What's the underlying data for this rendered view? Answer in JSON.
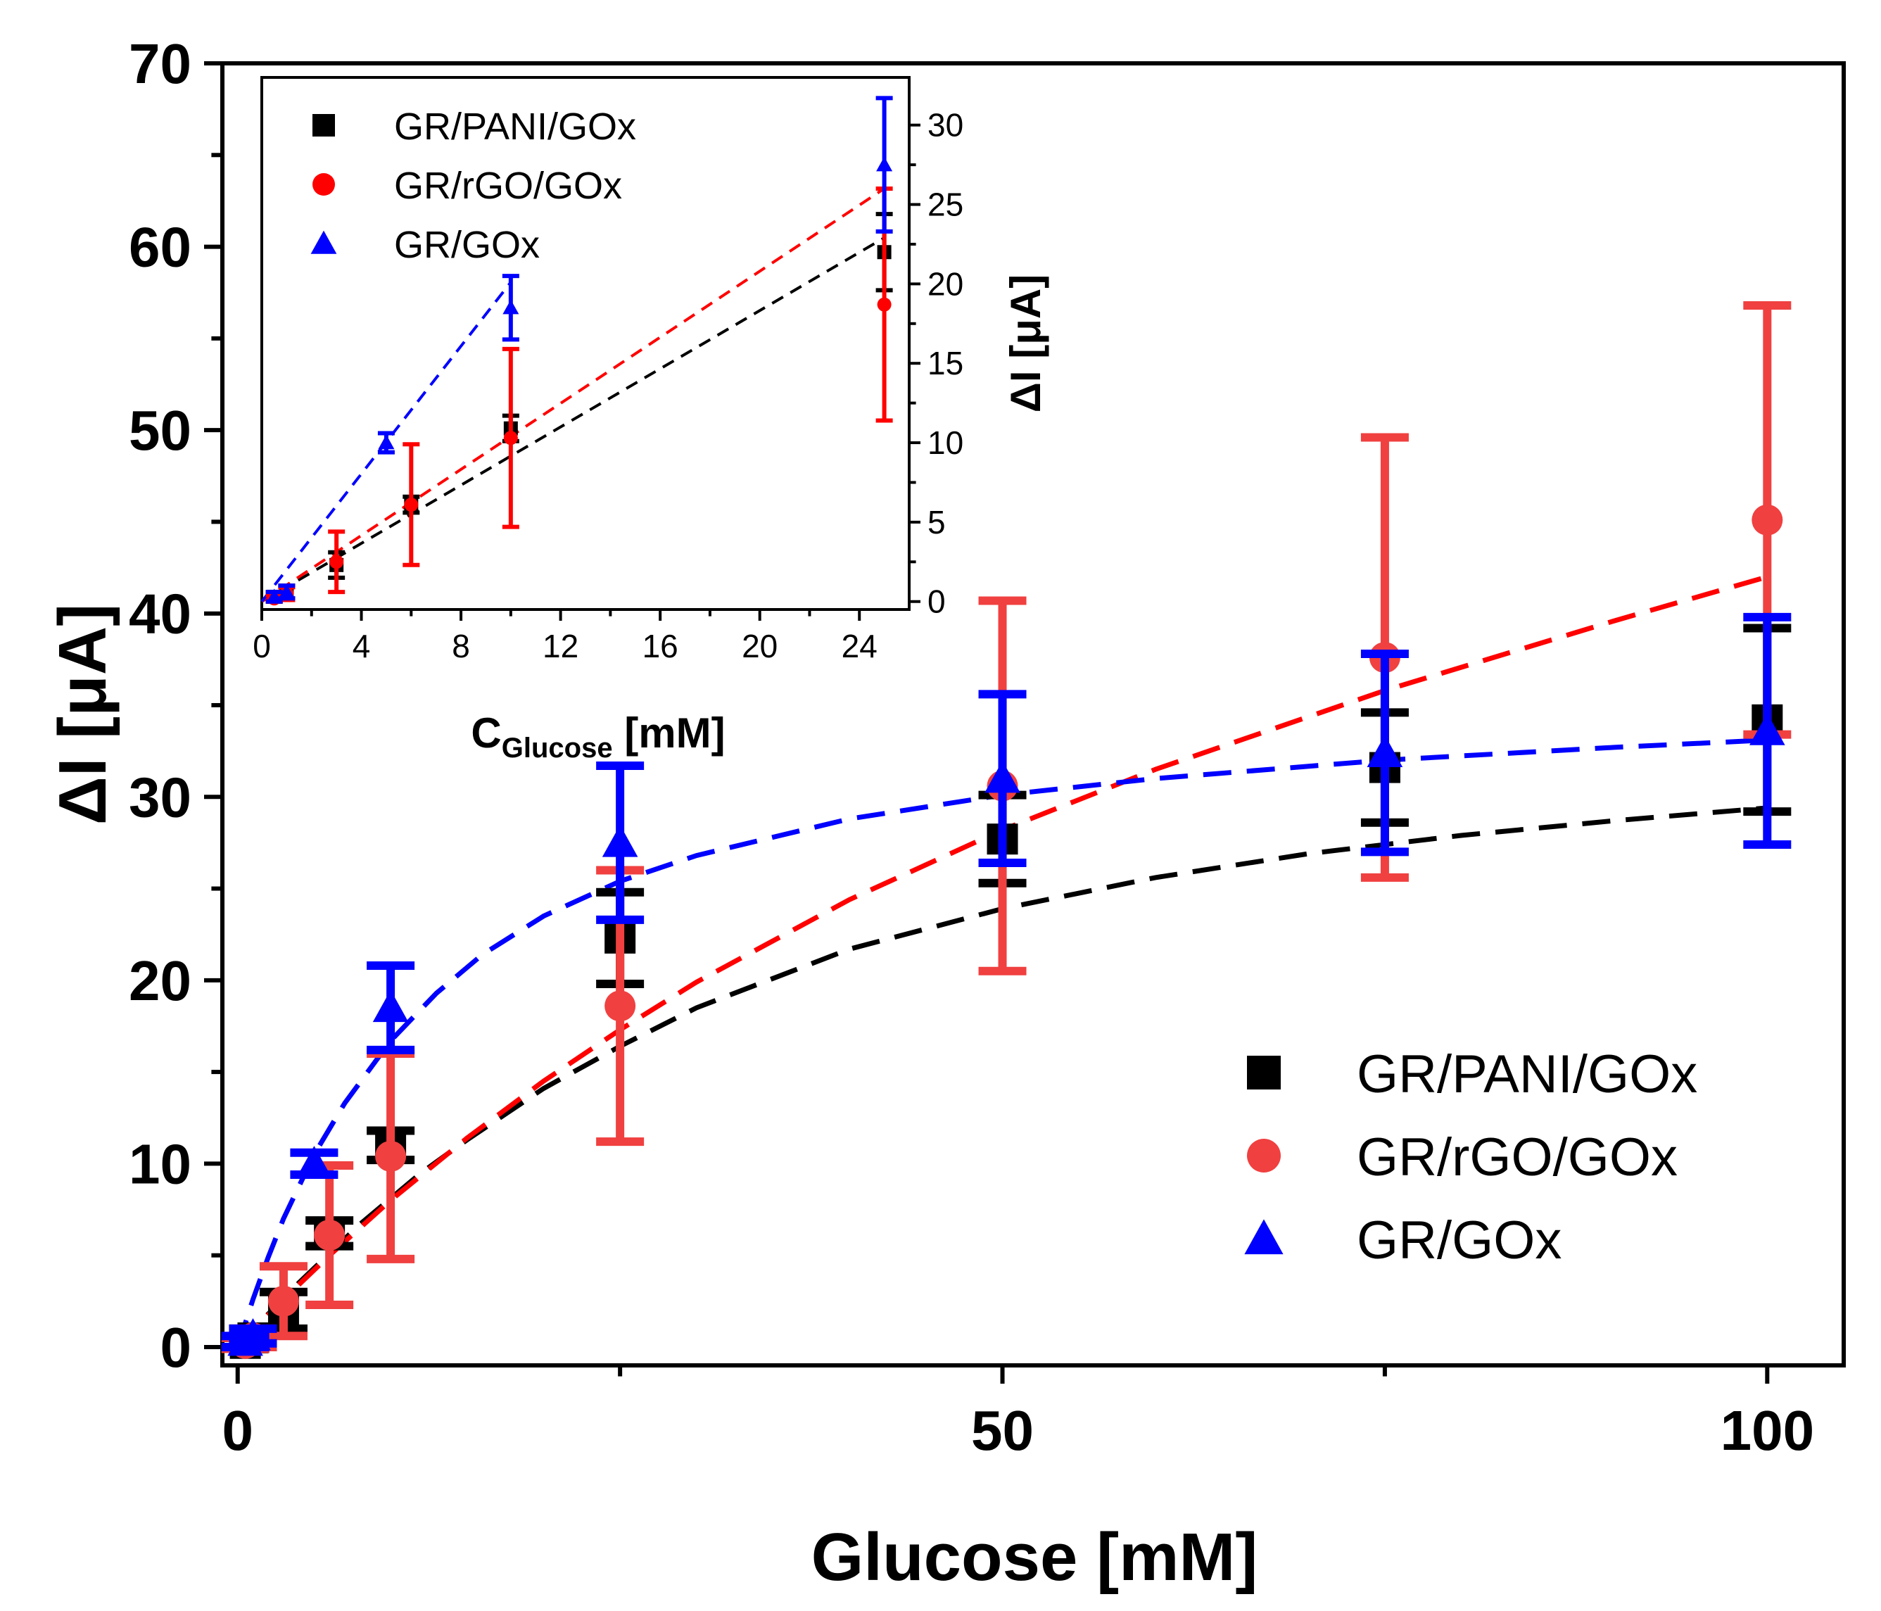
{
  "chart_data": [
    {
      "id": "main",
      "type": "scatter",
      "xlabel": "Glucose [mM]",
      "ylabel": "ΔI [μA]",
      "xlim": [
        -1,
        105
      ],
      "ylim": [
        -1,
        70
      ],
      "xticks": [
        0,
        50,
        100
      ],
      "yticks": [
        0,
        10,
        20,
        30,
        40,
        50,
        60,
        70
      ],
      "grid": false,
      "legend_position": "bottom-right",
      "series": [
        {
          "name": "GR/PANI/GOx",
          "color": "#000000",
          "marker": "square",
          "x": [
            0.5,
            1,
            3,
            6,
            10,
            25,
            50,
            75,
            100
          ],
          "y": [
            0.2,
            0.5,
            2.0,
            6.2,
            11.0,
            22.3,
            27.7,
            31.6,
            34.2
          ],
          "err": [
            0.3,
            0.5,
            1.0,
            0.7,
            0.8,
            2.5,
            2.4,
            3.0,
            5.0
          ],
          "fit_x": [
            0,
            1,
            2,
            3,
            4,
            5,
            6,
            8,
            10,
            12,
            15,
            20,
            25,
            30,
            40,
            50,
            60,
            70,
            80,
            90,
            100
          ],
          "fit_y": [
            0,
            0.9,
            1.8,
            2.6,
            3.5,
            4.3,
            5.1,
            6.7,
            8.1,
            9.5,
            11.3,
            14.1,
            16.4,
            18.5,
            21.7,
            23.9,
            25.6,
            26.9,
            27.9,
            28.7,
            29.4
          ]
        },
        {
          "name": "GR/rGO/GOx",
          "color": "#f04040",
          "marker": "circle",
          "x": [
            0.5,
            1,
            3,
            6,
            10,
            25,
            50,
            75,
            100
          ],
          "y": [
            0.2,
            0.5,
            2.5,
            6.1,
            10.4,
            18.6,
            30.6,
            37.6,
            45.1
          ],
          "err": [
            0.3,
            0.5,
            1.9,
            3.8,
            5.6,
            7.4,
            10.1,
            12.0,
            11.7
          ],
          "fit_x": [
            0,
            1,
            3,
            6,
            10,
            15,
            20,
            25,
            30,
            40,
            50,
            60,
            75,
            90,
            100
          ],
          "fit_y": [
            0,
            0.9,
            2.6,
            5.0,
            8.0,
            11.4,
            14.5,
            17.3,
            19.9,
            24.4,
            28.2,
            31.5,
            35.8,
            39.6,
            42.0
          ]
        },
        {
          "name": "GR/GOx",
          "color": "#0000ff",
          "marker": "triangle",
          "x": [
            0.5,
            1,
            5,
            10,
            25,
            50,
            75,
            100
          ],
          "y": [
            0.3,
            0.6,
            10.0,
            18.5,
            27.5,
            31.0,
            32.4,
            33.6
          ],
          "err": [
            0.3,
            0.4,
            0.6,
            2.3,
            4.2,
            4.6,
            5.4,
            6.2
          ],
          "fit_x": [
            0,
            1,
            2,
            3,
            5,
            7,
            10,
            13,
            16,
            20,
            25,
            30,
            40,
            50,
            60,
            75,
            90,
            100
          ],
          "fit_y": [
            0,
            2.6,
            4.9,
            7.0,
            10.5,
            13.3,
            16.7,
            19.3,
            21.4,
            23.5,
            25.4,
            26.8,
            28.8,
            30.1,
            31.0,
            32.0,
            32.7,
            33.1
          ]
        }
      ]
    },
    {
      "id": "inset",
      "type": "scatter",
      "xlabel_main": "C",
      "xlabel_sub": "Glucose",
      "xlabel_unit": " [mM]",
      "ylabel": "ΔI [μA]",
      "xlim": [
        0,
        26
      ],
      "ylim": [
        -0.5,
        33
      ],
      "xticks": [
        0,
        4,
        8,
        12,
        16,
        20,
        24
      ],
      "yticks": [
        0,
        5,
        10,
        15,
        20,
        25,
        30
      ],
      "y_axis_side": "right",
      "legend_position": "top-left",
      "series": [
        {
          "name": "GR/PANI/GOx",
          "color": "#000000",
          "marker": "square",
          "x": [
            0.5,
            1,
            3,
            6,
            10,
            25
          ],
          "y": [
            0.3,
            0.6,
            2.3,
            6.1,
            10.9,
            22.0
          ],
          "err": [
            0.3,
            0.4,
            0.8,
            0.5,
            0.8,
            2.4
          ],
          "fit_x": [
            0,
            25
          ],
          "fit_y": [
            0,
            22.9
          ]
        },
        {
          "name": "GR/rGO/GOx",
          "color": "#ff0000",
          "marker": "circle",
          "x": [
            0.5,
            1,
            3,
            6,
            10,
            25
          ],
          "y": [
            0.2,
            0.5,
            2.5,
            6.1,
            10.3,
            18.7
          ],
          "err": [
            0.2,
            0.4,
            1.9,
            3.8,
            5.6,
            7.3
          ],
          "fit_x": [
            0,
            25
          ],
          "fit_y": [
            0,
            26.0
          ]
        },
        {
          "name": "GR/GOx",
          "color": "#0000ff",
          "marker": "triangle",
          "x": [
            0.5,
            1,
            5,
            10,
            25
          ],
          "y": [
            0.3,
            0.6,
            10.0,
            18.5,
            27.5
          ],
          "err": [
            0.3,
            0.4,
            0.6,
            2.0,
            4.2
          ],
          "fit_x": [
            0,
            10
          ],
          "fit_y": [
            0,
            20.1
          ]
        }
      ]
    }
  ]
}
